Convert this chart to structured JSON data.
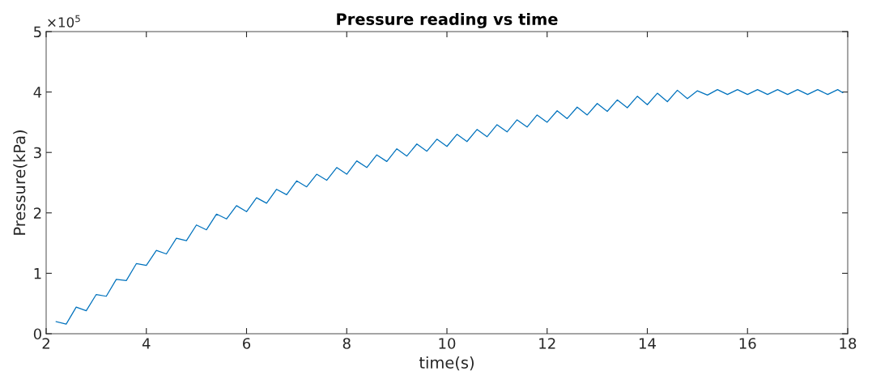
{
  "chart_data": {
    "type": "line",
    "title": "Pressure reading vs time",
    "xlabel": "time(s)",
    "ylabel": "Pressure(kPa)",
    "annotations": [
      "×10$^{5}$"
    ],
    "x": [
      2.2,
      2.4,
      2.6,
      2.8,
      3.0,
      3.2,
      3.4,
      3.6,
      3.8,
      4.0,
      4.2,
      4.4,
      4.6,
      4.8,
      5.0,
      5.2,
      5.4,
      5.6,
      5.8,
      6.0,
      6.2,
      6.4,
      6.6,
      6.8,
      7.0,
      7.2,
      7.4,
      7.6,
      7.8,
      8.0,
      8.2,
      8.4,
      8.6,
      8.8,
      9.0,
      9.2,
      9.4,
      9.6,
      9.8,
      10.0,
      10.2,
      10.4,
      10.6,
      10.8,
      11.0,
      11.2,
      11.4,
      11.6,
      11.8,
      12.0,
      12.2,
      12.4,
      12.6,
      12.8,
      13.0,
      13.2,
      13.4,
      13.6,
      13.8,
      14.0,
      14.2,
      14.4,
      14.6,
      14.8,
      15.0,
      15.2,
      15.4,
      15.6,
      15.8,
      16.0,
      16.2,
      16.4,
      16.6,
      16.8,
      17.0,
      17.2,
      17.4,
      17.6,
      17.8,
      17.9
    ],
    "series": [
      {
        "color": "#0072bd",
        "values": [
          0.2,
          0.16,
          0.44,
          0.38,
          0.65,
          0.62,
          0.9,
          0.88,
          1.16,
          1.13,
          1.38,
          1.32,
          1.58,
          1.54,
          1.8,
          1.72,
          1.98,
          1.9,
          2.12,
          2.02,
          2.25,
          2.16,
          2.39,
          2.3,
          2.53,
          2.43,
          2.64,
          2.54,
          2.75,
          2.64,
          2.86,
          2.75,
          2.96,
          2.85,
          3.06,
          2.94,
          3.14,
          3.02,
          3.22,
          3.1,
          3.3,
          3.18,
          3.38,
          3.26,
          3.46,
          3.34,
          3.54,
          3.42,
          3.62,
          3.5,
          3.69,
          3.56,
          3.75,
          3.62,
          3.81,
          3.68,
          3.87,
          3.74,
          3.93,
          3.79,
          3.98,
          3.84,
          4.03,
          3.89,
          4.02,
          3.95,
          4.04,
          3.96,
          4.04,
          3.96,
          4.04,
          3.96,
          4.04,
          3.96,
          4.04,
          3.96,
          4.04,
          3.96,
          4.04,
          3.99
        ]
      }
    ],
    "xlim": [
      2,
      18
    ],
    "xticks": [
      2,
      4,
      6,
      8,
      10,
      12,
      14,
      16,
      18
    ],
    "ylim": [
      0,
      5
    ],
    "yticks": [
      0,
      1,
      2,
      3,
      4,
      5
    ],
    "grid": false,
    "line_style": "solid",
    "marker": "none"
  }
}
